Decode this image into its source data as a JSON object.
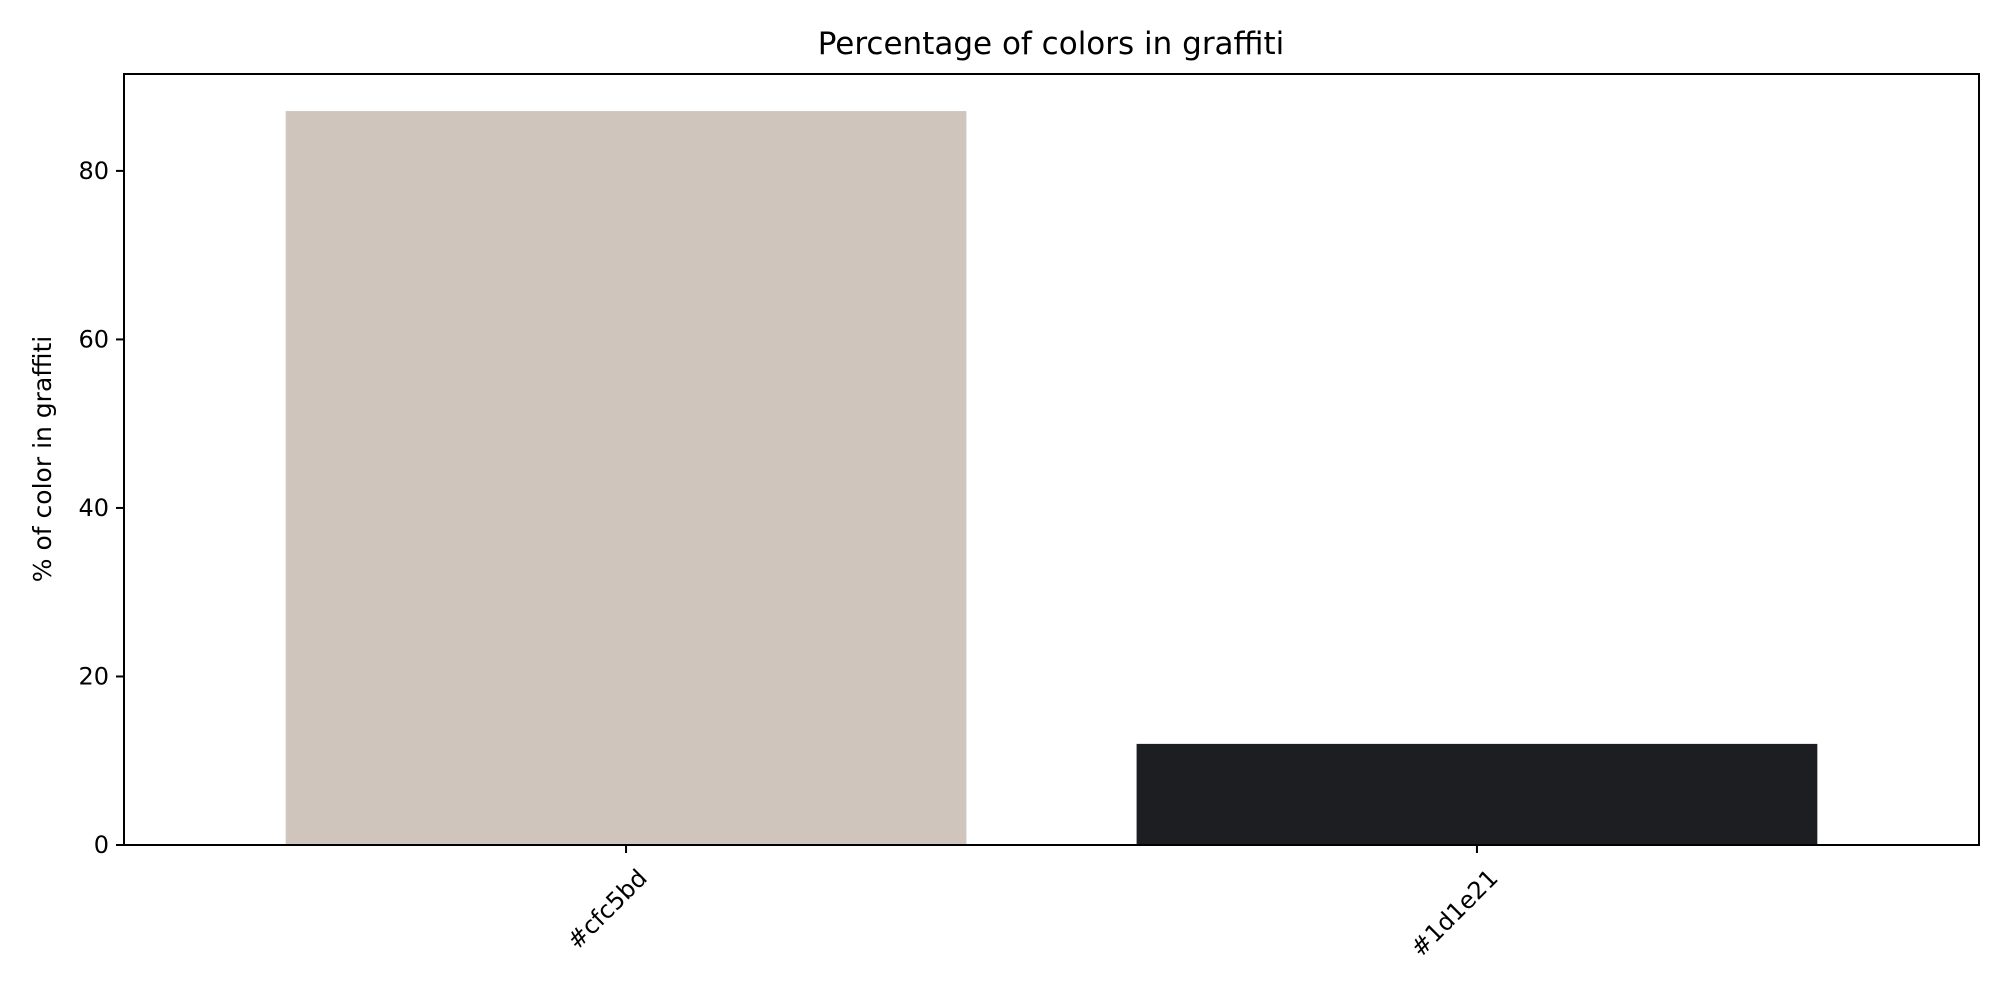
{
  "chart_data": {
    "type": "bar",
    "title": "Percentage of colors in graffiti",
    "xlabel": "",
    "ylabel": "% of color in graffiti",
    "categories": [
      "#cfc5bd",
      "#1d1e21"
    ],
    "values": [
      87.1,
      12.0
    ],
    "bar_colors": [
      "#cfc5bd",
      "#1d1e21"
    ],
    "ylim": [
      0,
      91.5
    ],
    "yticks": [
      0,
      20,
      40,
      60,
      80
    ],
    "ytick_labels": [
      "0",
      "20",
      "40",
      "60",
      "80"
    ],
    "grid": false,
    "legend": "none"
  }
}
